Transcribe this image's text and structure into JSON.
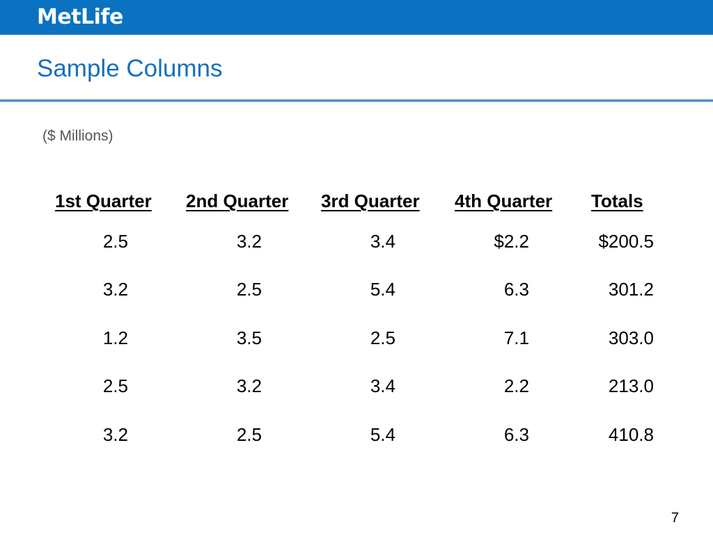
{
  "header": {
    "logo_text": "MetLife",
    "brand_color": "#0a72c0"
  },
  "slide": {
    "title": "Sample Columns",
    "units": "($ Millions)",
    "page_number": "7"
  },
  "table": {
    "columns": [
      "1st Quarter",
      "2nd Quarter",
      "3rd Quarter",
      "4th Quarter",
      "Totals"
    ],
    "rows": [
      [
        "2.5",
        "3.2",
        "3.4",
        "$2.2",
        "$200.5"
      ],
      [
        "3.2",
        "2.5",
        "5.4",
        "6.3",
        "301.2"
      ],
      [
        "1.2",
        "3.5",
        "2.5",
        "7.1",
        "303.0"
      ],
      [
        "2.5",
        "3.2",
        "3.4",
        "2.2",
        "213.0"
      ],
      [
        "3.2",
        "2.5",
        "5.4",
        "6.3",
        "410.8"
      ]
    ]
  }
}
